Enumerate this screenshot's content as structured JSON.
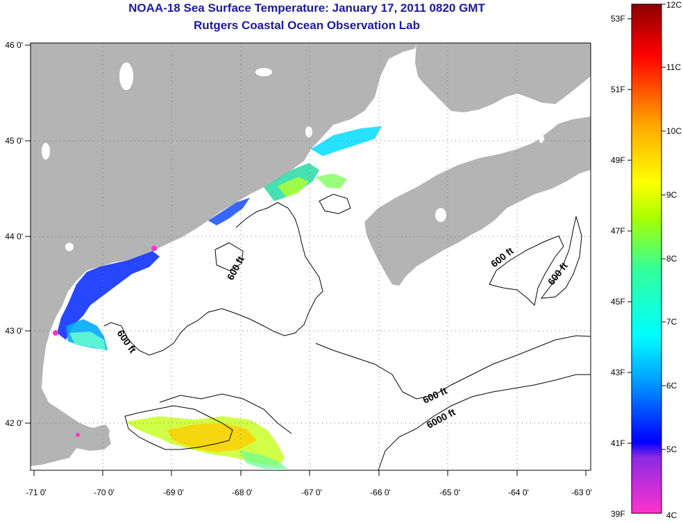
{
  "title": "NOAA-18 Sea Surface Temperature:  January 17, 2011 0820 GMT",
  "subtitle": "Rutgers Coastal Ocean Observation Lab",
  "map": {
    "lon_ticks": [
      "-71 0'",
      "-70 0'",
      "-69 0'",
      "-68 0'",
      "-67 0'",
      "-66 0'",
      "-65 0'",
      "-64 0'",
      "-63 0'"
    ],
    "lat_ticks": [
      "46 0'",
      "45 0'",
      "44 0'",
      "43 0'",
      "42 0'"
    ],
    "lon_range": [
      -71,
      -63
    ],
    "lat_range": [
      41.5,
      46
    ],
    "land_color": "#b4b4b4",
    "ocean_color": "#ffffff",
    "contour_labels": [
      "600 ft",
      "600 ft",
      "600 ft",
      "600 ft",
      "600 ft",
      "6000 ft"
    ]
  },
  "colorbar": {
    "fahrenheit_labels": [
      "53F",
      "51F",
      "49F",
      "47F",
      "45F",
      "43F",
      "41F",
      "39F"
    ],
    "celsius_labels": [
      "12C",
      "11C",
      "10C",
      "9C",
      "8C",
      "7C",
      "6C",
      "5C",
      "4C"
    ],
    "colors": [
      "#ff33cc",
      "#8a2be2",
      "#0000ff",
      "#00aaff",
      "#00ffff",
      "#33ff99",
      "#aaff00",
      "#ffff00",
      "#ffaa00",
      "#ff5500",
      "#ff0000",
      "#cc0000",
      "#8b0000"
    ]
  }
}
